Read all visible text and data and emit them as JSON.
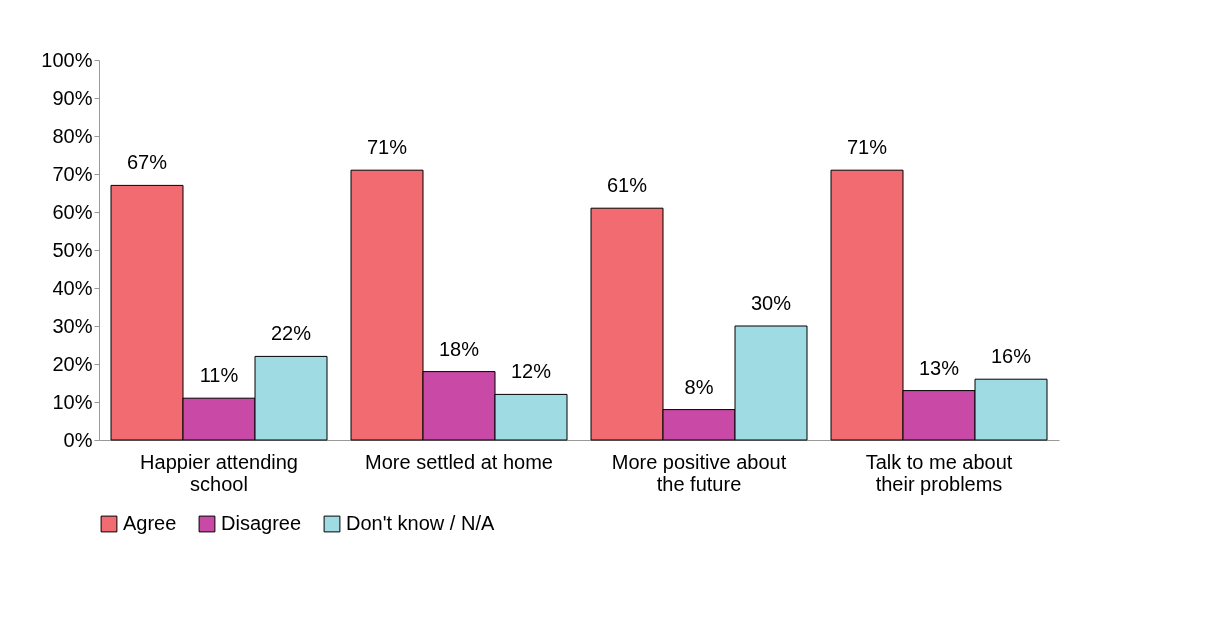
{
  "chart_data": {
    "type": "bar",
    "categories": [
      "Happier attending school",
      "More settled at home",
      "More positive about the future",
      "Talk to me about their problems"
    ],
    "series": [
      {
        "name": "Agree",
        "color": "#f26b70",
        "values": [
          67,
          71,
          61,
          71
        ],
        "value_labels": [
          "67%",
          "71%",
          "61%",
          "71%"
        ]
      },
      {
        "name": "Disagree",
        "color": "#c94aa6",
        "values": [
          11,
          18,
          8,
          13
        ],
        "value_labels": [
          "11%",
          "18%",
          "8%",
          "13%"
        ]
      },
      {
        "name": "Don't know / N/A",
        "color": "#9fdbe2",
        "values": [
          22,
          12,
          30,
          16
        ],
        "value_labels": [
          "22%",
          "12%",
          "30%",
          "16%"
        ]
      }
    ],
    "ylim": [
      0,
      100
    ],
    "yticks": [
      {
        "value": 0,
        "label": "0%"
      },
      {
        "value": 10,
        "label": "10%"
      },
      {
        "value": 20,
        "label": "20%"
      },
      {
        "value": 30,
        "label": "30%"
      },
      {
        "value": 40,
        "label": "40%"
      },
      {
        "value": 50,
        "label": "50%"
      },
      {
        "value": 60,
        "label": "60%"
      },
      {
        "value": 70,
        "label": "70%"
      },
      {
        "value": 80,
        "label": "80%"
      },
      {
        "value": 90,
        "label": "90%"
      },
      {
        "value": 100,
        "label": "100%"
      }
    ],
    "grid": false,
    "legend": "bottom"
  }
}
